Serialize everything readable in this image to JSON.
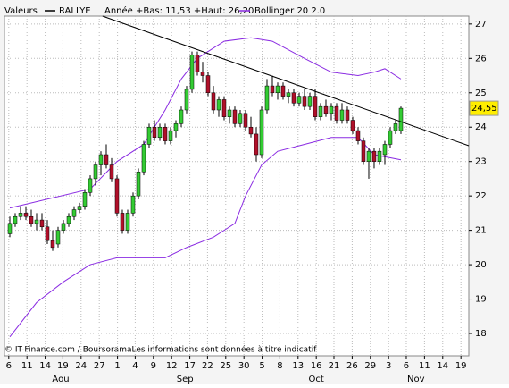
{
  "chart_data": {
    "type": "candlestick",
    "label": "Valeurs",
    "name": "RALLYE",
    "info": "Année +Bas: 11,53 +Haut: 26,20",
    "up_color": "#33cc33",
    "down_color": "#b0102a",
    "x": [
      0,
      1,
      2,
      3,
      4,
      5,
      6,
      7,
      8,
      9,
      10,
      11,
      12,
      13,
      14,
      15,
      16,
      17,
      18,
      19,
      20,
      21,
      22,
      23,
      24,
      25,
      26,
      27,
      28,
      29,
      30,
      31,
      32,
      33,
      34,
      35,
      36,
      37,
      38,
      39,
      40,
      41,
      42,
      43,
      44,
      45,
      46,
      47,
      48,
      49,
      50,
      51,
      52,
      53,
      54,
      55,
      56,
      57,
      58,
      59,
      60,
      61,
      62,
      63,
      64,
      65,
      66,
      67,
      68,
      69,
      70,
      71,
      72,
      73
    ],
    "candles": [
      [
        20.9,
        21.4,
        20.8,
        21.2
      ],
      [
        21.2,
        21.5,
        21.1,
        21.4
      ],
      [
        21.4,
        21.7,
        21.3,
        21.5
      ],
      [
        21.5,
        21.7,
        21.3,
        21.4
      ],
      [
        21.4,
        21.6,
        21.1,
        21.2
      ],
      [
        21.2,
        21.5,
        21.0,
        21.3
      ],
      [
        21.3,
        21.5,
        21.0,
        21.1
      ],
      [
        21.1,
        21.3,
        20.6,
        20.7
      ],
      [
        20.7,
        21.0,
        20.4,
        20.5
      ],
      [
        20.6,
        21.1,
        20.5,
        21.0
      ],
      [
        21.0,
        21.3,
        20.9,
        21.2
      ],
      [
        21.2,
        21.5,
        21.1,
        21.4
      ],
      [
        21.4,
        21.7,
        21.3,
        21.6
      ],
      [
        21.6,
        21.8,
        21.5,
        21.7
      ],
      [
        21.7,
        22.2,
        21.6,
        22.1
      ],
      [
        22.1,
        22.6,
        22.0,
        22.5
      ],
      [
        22.5,
        23.0,
        22.3,
        22.9
      ],
      [
        22.9,
        23.3,
        22.6,
        23.2
      ],
      [
        23.2,
        23.5,
        22.8,
        22.9
      ],
      [
        22.9,
        23.1,
        22.4,
        22.5
      ],
      [
        22.5,
        22.6,
        21.4,
        21.5
      ],
      [
        21.5,
        21.6,
        20.9,
        21.0
      ],
      [
        21.0,
        21.6,
        20.9,
        21.5
      ],
      [
        21.5,
        22.1,
        21.4,
        22.0
      ],
      [
        22.0,
        22.8,
        21.9,
        22.7
      ],
      [
        22.7,
        23.6,
        22.6,
        23.5
      ],
      [
        23.5,
        24.1,
        23.4,
        24.0
      ],
      [
        24.0,
        24.2,
        23.6,
        23.7
      ],
      [
        23.7,
        24.1,
        23.6,
        24.0
      ],
      [
        24.0,
        24.1,
        23.5,
        23.6
      ],
      [
        23.6,
        24.0,
        23.5,
        23.9
      ],
      [
        23.9,
        24.2,
        23.7,
        24.1
      ],
      [
        24.1,
        24.6,
        24.0,
        24.5
      ],
      [
        24.5,
        25.2,
        24.4,
        25.1
      ],
      [
        25.1,
        26.2,
        25.0,
        26.1
      ],
      [
        26.1,
        26.2,
        25.5,
        25.6
      ],
      [
        25.6,
        25.9,
        25.3,
        25.5
      ],
      [
        25.5,
        25.6,
        24.9,
        25.0
      ],
      [
        25.0,
        25.2,
        24.4,
        24.5
      ],
      [
        24.5,
        24.9,
        24.3,
        24.8
      ],
      [
        24.8,
        24.9,
        24.2,
        24.3
      ],
      [
        24.3,
        24.6,
        24.1,
        24.5
      ],
      [
        24.5,
        24.6,
        24.0,
        24.1
      ],
      [
        24.1,
        24.5,
        24.0,
        24.4
      ],
      [
        24.4,
        24.5,
        23.9,
        24.0
      ],
      [
        24.0,
        24.3,
        23.7,
        23.8
      ],
      [
        23.8,
        24.0,
        23.0,
        23.2
      ],
      [
        23.2,
        24.6,
        23.1,
        24.5
      ],
      [
        24.5,
        25.4,
        24.4,
        25.2
      ],
      [
        25.2,
        25.5,
        24.9,
        25.0
      ],
      [
        25.0,
        25.3,
        24.8,
        25.2
      ],
      [
        25.2,
        25.3,
        24.8,
        24.9
      ],
      [
        24.9,
        25.1,
        24.7,
        25.0
      ],
      [
        25.0,
        25.1,
        24.6,
        24.7
      ],
      [
        24.7,
        25.0,
        24.6,
        24.9
      ],
      [
        24.9,
        25.1,
        24.5,
        24.6
      ],
      [
        24.6,
        25.0,
        24.5,
        24.9
      ],
      [
        24.9,
        25.1,
        24.2,
        24.3
      ],
      [
        24.3,
        24.7,
        24.2,
        24.6
      ],
      [
        24.6,
        24.8,
        24.3,
        24.4
      ],
      [
        24.4,
        24.7,
        24.2,
        24.6
      ],
      [
        24.6,
        24.7,
        24.1,
        24.2
      ],
      [
        24.2,
        24.7,
        24.1,
        24.5
      ],
      [
        24.5,
        24.6,
        24.1,
        24.2
      ],
      [
        24.2,
        24.3,
        23.8,
        23.9
      ],
      [
        23.9,
        24.0,
        23.5,
        23.6
      ],
      [
        23.6,
        23.7,
        22.9,
        23.0
      ],
      [
        23.0,
        23.4,
        22.5,
        23.3
      ],
      [
        23.3,
        23.4,
        22.8,
        23.0
      ],
      [
        23.0,
        23.4,
        22.9,
        23.3
      ],
      [
        23.2,
        23.6,
        22.9,
        23.5
      ],
      [
        23.5,
        24.0,
        23.4,
        23.9
      ],
      [
        23.9,
        24.2,
        23.8,
        24.1
      ],
      [
        23.9,
        24.6,
        23.8,
        24.55
      ]
    ],
    "bollinger": {
      "name": "Bollinger 20 2.0",
      "color": "#8a2be2",
      "upper": {
        "x": [
          0,
          15,
          20,
          25,
          29,
          32,
          35,
          40,
          45,
          49,
          55,
          60,
          65,
          68,
          70,
          73
        ],
        "values": [
          21.65,
          22.2,
          23.0,
          23.5,
          24.5,
          25.4,
          26.0,
          26.5,
          26.6,
          26.5,
          26.0,
          25.6,
          25.5,
          25.6,
          25.7,
          25.4
        ]
      },
      "lower": {
        "x": [
          0,
          5,
          10,
          15,
          20,
          25,
          29,
          33,
          38,
          42,
          44,
          47,
          50,
          55,
          60,
          65,
          68,
          73
        ],
        "values": [
          17.9,
          18.9,
          19.5,
          20.0,
          20.2,
          20.2,
          20.2,
          20.5,
          20.8,
          21.2,
          22.0,
          22.9,
          23.3,
          23.5,
          23.7,
          23.7,
          23.2,
          23.05
        ]
      }
    },
    "trend_line": {
      "x": [
        17.3,
        85.67
      ],
      "values": [
        27.23,
        23.46
      ],
      "color": "#000000"
    },
    "last_price": {
      "value": 24.55,
      "label": "24,55"
    },
    "xlim": [
      -1,
      85.67
    ],
    "xticks": [
      {
        "value": -0.2,
        "label": "6"
      },
      {
        "value": 3.2,
        "label": "11"
      },
      {
        "value": 6.6,
        "label": "14"
      },
      {
        "value": 9.9,
        "label": "19"
      },
      {
        "value": 13.3,
        "label": "24"
      },
      {
        "value": 16.7,
        "label": "27"
      },
      {
        "value": 20.1,
        "label": "1"
      },
      {
        "value": 23.4,
        "label": "4"
      },
      {
        "value": 26.8,
        "label": "9"
      },
      {
        "value": 30.2,
        "label": "12"
      },
      {
        "value": 33.6,
        "label": "17"
      },
      {
        "value": 36.9,
        "label": "22"
      },
      {
        "value": 40.3,
        "label": "25"
      },
      {
        "value": 43.7,
        "label": "30"
      },
      {
        "value": 47.1,
        "label": "5"
      },
      {
        "value": 50.4,
        "label": "8"
      },
      {
        "value": 53.8,
        "label": "13"
      },
      {
        "value": 57.2,
        "label": "16"
      },
      {
        "value": 60.5,
        "label": "21"
      },
      {
        "value": 63.9,
        "label": "26"
      },
      {
        "value": 67.3,
        "label": "29"
      },
      {
        "value": 70.7,
        "label": "3"
      },
      {
        "value": 74.0,
        "label": "6"
      },
      {
        "value": 77.4,
        "label": "11"
      },
      {
        "value": 80.8,
        "label": "14"
      },
      {
        "value": 84.2,
        "label": "19"
      }
    ],
    "month_labels": [
      {
        "value": 9.5,
        "label": "Aou"
      },
      {
        "value": 32.7,
        "label": "Sep"
      },
      {
        "value": 57.2,
        "label": "Oct"
      },
      {
        "value": 75.8,
        "label": "Nov"
      }
    ],
    "ylim": [
      17.35,
      27.23
    ],
    "yticks": [
      18,
      19,
      20,
      21,
      22,
      23,
      24,
      25,
      26,
      27
    ],
    "grid": true,
    "source": "© IT-Finance.com / BoursoramaLes informations sont données à titre indicatif"
  }
}
